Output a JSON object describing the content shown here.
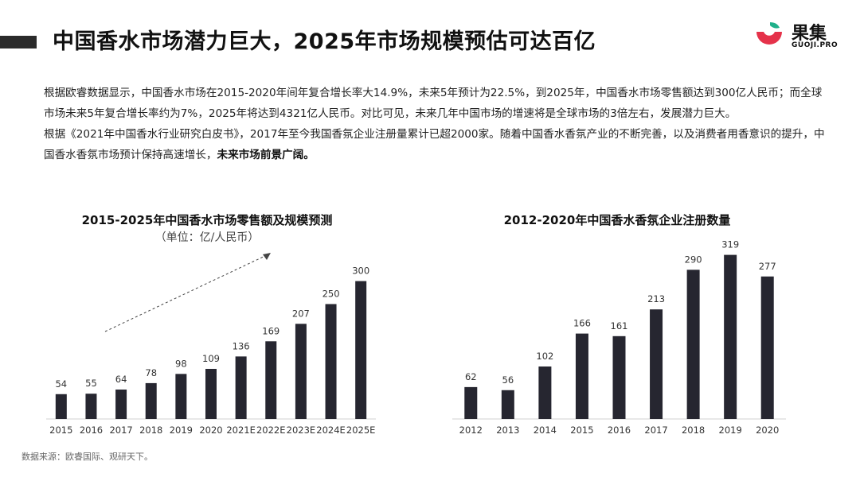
{
  "header": {
    "title": "中国香水市场潜力巨大，2025年市场规模预估可达百亿",
    "logo_text": "果集",
    "logo_sub": "GUOJI.PRO"
  },
  "intro": {
    "p1": "根据欧睿数据显示，中国香水市场在2015-2020年间年复合增长率大14.9%，未来5年预计为22.5%，到2025年，中国香水市场零售额达到300亿人民币；而全球市场未来5年复合增长率约为7%，2025年将达到4321亿人民币。对比可见，未来几年中国市场的增速将是全球市场的3倍左右，发展潜力巨大。",
    "p2_normal": "根据《2021年中国香水行业研究白皮书》，2017年至今我国香氛企业注册量累计已超2000家。随着中国香水香氛产业的不断完善，以及消费者用香意识的提升，中国香水香氛市场预计保持高速增长，",
    "p2_bold": "未来市场前景广阔。"
  },
  "source": "数据来源：欧睿国际、观研天下。",
  "colors": {
    "bar": "#262630",
    "accent_red": "#e5324a",
    "accent_green": "#1fb08a"
  },
  "chart_data": [
    {
      "type": "bar",
      "title": "2015-2025年中国香水市场零售额及规模预测",
      "subtitle": "（单位：亿/人民币）",
      "categories": [
        "2015",
        "2016",
        "2017",
        "2018",
        "2019",
        "2020",
        "2021E",
        "2022E",
        "2023E",
        "2024E",
        "2025E"
      ],
      "values": [
        54,
        55,
        64,
        78,
        98,
        109,
        136,
        169,
        207,
        250,
        300
      ],
      "ylim": [
        0,
        320
      ],
      "grid": false,
      "annotation": "dashed-trend-arrow"
    },
    {
      "type": "bar",
      "title": "2012-2020年中国香水香氛企业注册数量",
      "categories": [
        "2012",
        "2013",
        "2014",
        "2015",
        "2016",
        "2017",
        "2018",
        "2019",
        "2020"
      ],
      "values": [
        62,
        56,
        102,
        166,
        161,
        213,
        290,
        319,
        277
      ],
      "ylim": [
        0,
        340
      ],
      "grid": false
    }
  ]
}
